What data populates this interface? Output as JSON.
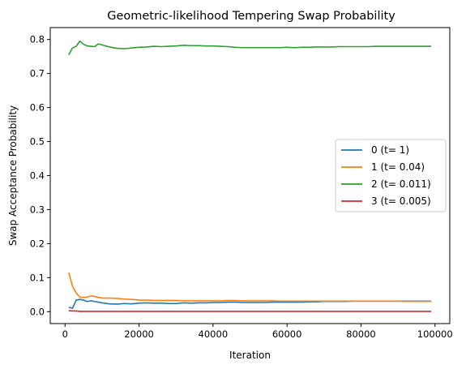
{
  "chart_data": {
    "type": "line",
    "title": "Geometric-likelihood Tempering Swap Probability",
    "xlabel": "Iteration",
    "ylabel": "Swap Acceptance Probability",
    "xlim": [
      -4000,
      104000
    ],
    "ylim": [
      -0.035,
      0.835
    ],
    "xticks": [
      0,
      20000,
      40000,
      60000,
      80000,
      100000
    ],
    "xtick_labels": [
      "0",
      "20000",
      "40000",
      "60000",
      "80000",
      "100000"
    ],
    "yticks": [
      0.0,
      0.1,
      0.2,
      0.3,
      0.4,
      0.5,
      0.6,
      0.7,
      0.8
    ],
    "ytick_labels": [
      "0.0",
      "0.1",
      "0.2",
      "0.3",
      "0.4",
      "0.5",
      "0.6",
      "0.7",
      "0.8"
    ],
    "grid": false,
    "legend_position": "center-right",
    "x": [
      1000,
      2000,
      3000,
      4000,
      5000,
      6000,
      7000,
      8000,
      9000,
      10000,
      12000,
      14000,
      16000,
      18000,
      20000,
      22000,
      24000,
      26000,
      28000,
      30000,
      32000,
      34000,
      36000,
      38000,
      40000,
      42000,
      44000,
      46000,
      48000,
      50000,
      52000,
      54000,
      56000,
      58000,
      60000,
      62000,
      64000,
      66000,
      68000,
      70000,
      72000,
      74000,
      76000,
      78000,
      80000,
      82000,
      84000,
      86000,
      88000,
      90000,
      92000,
      94000,
      96000,
      99000
    ],
    "series": [
      {
        "name": "0 (t= 1)",
        "color": "#1f77b4",
        "values": [
          0.013,
          0.01,
          0.034,
          0.036,
          0.034,
          0.03,
          0.032,
          0.03,
          0.028,
          0.026,
          0.023,
          0.022,
          0.024,
          0.023,
          0.025,
          0.026,
          0.025,
          0.025,
          0.024,
          0.024,
          0.026,
          0.025,
          0.026,
          0.026,
          0.027,
          0.027,
          0.028,
          0.028,
          0.027,
          0.027,
          0.027,
          0.027,
          0.028,
          0.028,
          0.028,
          0.028,
          0.028,
          0.029,
          0.029,
          0.03,
          0.03,
          0.03,
          0.03,
          0.031,
          0.031,
          0.031,
          0.031,
          0.031,
          0.031,
          0.031,
          0.031,
          0.031,
          0.031,
          0.031
        ]
      },
      {
        "name": "1 (t= 0.04)",
        "color": "#ff7f0e",
        "values": [
          0.115,
          0.075,
          0.055,
          0.043,
          0.042,
          0.043,
          0.046,
          0.045,
          0.042,
          0.04,
          0.04,
          0.039,
          0.037,
          0.036,
          0.034,
          0.034,
          0.033,
          0.033,
          0.033,
          0.033,
          0.032,
          0.032,
          0.032,
          0.032,
          0.032,
          0.032,
          0.033,
          0.033,
          0.032,
          0.032,
          0.032,
          0.032,
          0.032,
          0.031,
          0.031,
          0.031,
          0.031,
          0.031,
          0.031,
          0.031,
          0.031,
          0.031,
          0.031,
          0.031,
          0.031,
          0.031,
          0.031,
          0.031,
          0.031,
          0.031,
          0.03,
          0.03,
          0.03,
          0.03
        ]
      },
      {
        "name": "2 (t= 0.011)",
        "color": "#2ca02c",
        "values": [
          0.755,
          0.775,
          0.78,
          0.795,
          0.786,
          0.781,
          0.78,
          0.779,
          0.787,
          0.784,
          0.778,
          0.774,
          0.773,
          0.775,
          0.777,
          0.778,
          0.78,
          0.779,
          0.78,
          0.781,
          0.783,
          0.782,
          0.782,
          0.781,
          0.781,
          0.78,
          0.779,
          0.777,
          0.776,
          0.776,
          0.776,
          0.776,
          0.776,
          0.776,
          0.777,
          0.776,
          0.777,
          0.777,
          0.778,
          0.778,
          0.778,
          0.779,
          0.779,
          0.779,
          0.779,
          0.779,
          0.78,
          0.78,
          0.78,
          0.78,
          0.78,
          0.78,
          0.78,
          0.78
        ]
      },
      {
        "name": "3 (t= 0.005)",
        "color": "#d62728",
        "values": [
          0.003,
          0.002,
          0.002,
          0.001,
          0.001,
          0.001,
          0.001,
          0.001,
          0.001,
          0.001,
          0.001,
          0.001,
          0.001,
          0.001,
          0.001,
          0.001,
          0.001,
          0.001,
          0.001,
          0.001,
          0.001,
          0.001,
          0.001,
          0.001,
          0.001,
          0.001,
          0.001,
          0.001,
          0.001,
          0.001,
          0.001,
          0.001,
          0.001,
          0.001,
          0.001,
          0.001,
          0.001,
          0.001,
          0.001,
          0.001,
          0.001,
          0.001,
          0.001,
          0.001,
          0.001,
          0.001,
          0.001,
          0.001,
          0.001,
          0.001,
          0.001,
          0.001,
          0.001,
          0.001
        ]
      }
    ]
  }
}
